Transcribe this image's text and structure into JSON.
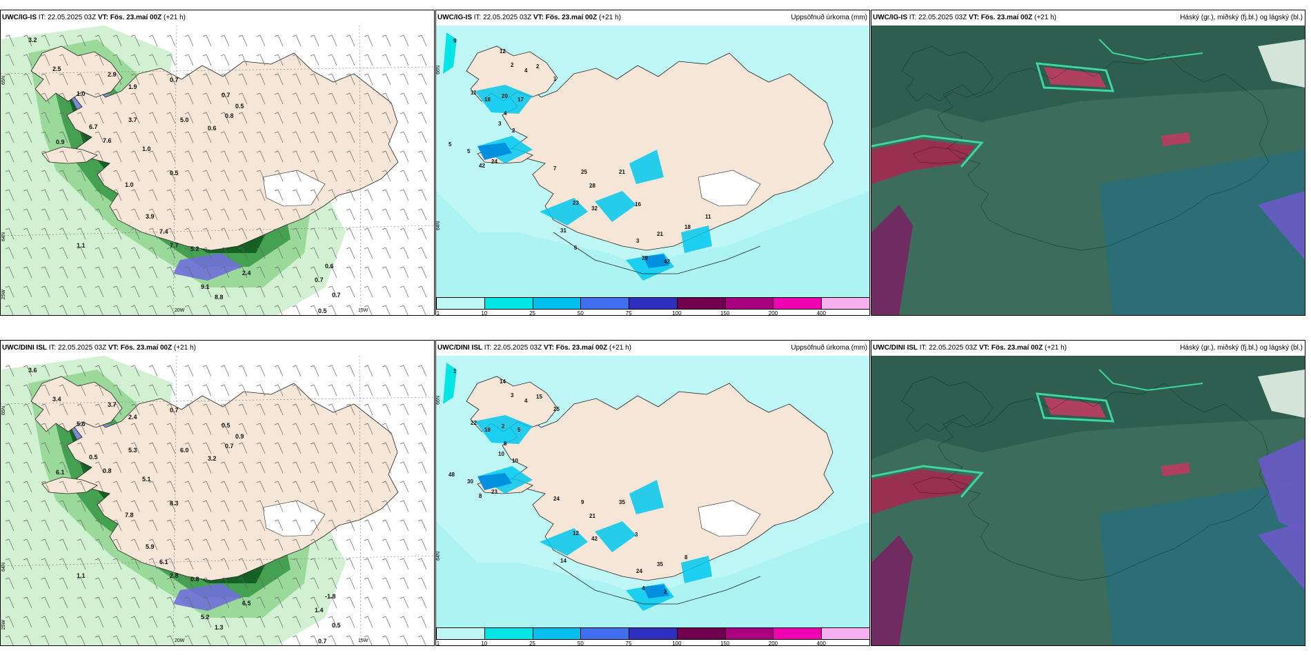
{
  "rows": [
    {
      "model": "UWC/IG-IS",
      "it_label": "IT:",
      "it_value": "22.05.2025 03Z",
      "vt_label": "VT:",
      "vt_value": "Fös. 23.maí 00Z",
      "lead": "(+21 h)"
    },
    {
      "model": "UWC/DINI ISL",
      "it_label": "IT:",
      "it_value": "22.05.2025 03Z",
      "vt_label": "VT:",
      "vt_value": "Fös. 23.maí 00Z",
      "lead": "(+21 h)"
    }
  ],
  "titles": {
    "precip": "Uppsöfnuð úrkoma (mm)",
    "clouds": "Háský (gr.), miðský (fj.bl.) og lágský (bl.)"
  },
  "axis_labels": {
    "lat65": "65N",
    "lat64": "64N",
    "lat66": "66N",
    "lon25": "25W",
    "lon20": "20W",
    "lon15": "15W"
  },
  "colorbar": {
    "ticks": [
      "1",
      "10",
      "25",
      "50",
      "75",
      "100",
      "150",
      "200",
      "400"
    ],
    "colors": [
      "#bff7f7",
      "#00e5e5",
      "#00bfef",
      "#3f6fef",
      "#2f2fbf",
      "#6f0050",
      "#a8007f",
      "#ef00b0",
      "#f7b0f0"
    ]
  },
  "colors": {
    "land": "#f5e6d8",
    "sea_precip": "#aef3f3",
    "wind_green_light": "#b9e8b9",
    "wind_green_dark": "#0f5a1f",
    "cloud_base": "#2e5e50"
  },
  "wind_panels": [
    {
      "labels": [
        {
          "t": "3.2"
        },
        {
          "t": "2.5"
        },
        {
          "t": "2.9"
        },
        {
          "t": "1.9"
        },
        {
          "t": "0.7"
        },
        {
          "t": "1.0"
        },
        {
          "t": "6.7"
        },
        {
          "t": "7.6"
        },
        {
          "t": "3.7"
        },
        {
          "t": "0.9"
        },
        {
          "t": "5.0"
        },
        {
          "t": "0.6"
        },
        {
          "t": "0.8"
        },
        {
          "t": "0.5"
        },
        {
          "t": "0.7"
        },
        {
          "t": "1.0"
        },
        {
          "t": "0.5"
        },
        {
          "t": "1.0"
        },
        {
          "t": "3.9"
        },
        {
          "t": "7.4"
        },
        {
          "t": "7.7"
        },
        {
          "t": "5.2"
        },
        {
          "t": "2.4"
        },
        {
          "t": "9.1"
        },
        {
          "t": "8.8"
        },
        {
          "t": "0.5"
        },
        {
          "t": "0.7"
        },
        {
          "t": "0.7"
        },
        {
          "t": "0.6"
        },
        {
          "t": "1.1"
        }
      ]
    },
    {
      "labels": [
        {
          "t": "3.6"
        },
        {
          "t": "3.4"
        },
        {
          "t": "3.7"
        },
        {
          "t": "2.4"
        },
        {
          "t": "0.7"
        },
        {
          "t": "5.6"
        },
        {
          "t": "0.5"
        },
        {
          "t": "0.8"
        },
        {
          "t": "5.3"
        },
        {
          "t": "6.1"
        },
        {
          "t": "6.0"
        },
        {
          "t": "3.2"
        },
        {
          "t": "0.7"
        },
        {
          "t": "0.9"
        },
        {
          "t": "0.5"
        },
        {
          "t": "5.1"
        },
        {
          "t": "8.3"
        },
        {
          "t": "7.8"
        },
        {
          "t": "5.9"
        },
        {
          "t": "6.1"
        },
        {
          "t": "2.8"
        },
        {
          "t": "0.8"
        },
        {
          "t": "6.5"
        },
        {
          "t": "5.2"
        },
        {
          "t": "1.3"
        },
        {
          "t": "0.7"
        },
        {
          "t": "0.5"
        },
        {
          "t": "1.4"
        },
        {
          "t": "-1.8"
        },
        {
          "t": "1.1"
        }
      ]
    }
  ],
  "precip_panels": [
    {
      "labels": [
        {
          "t": "9"
        },
        {
          "t": "12"
        },
        {
          "t": "2"
        },
        {
          "t": "4"
        },
        {
          "t": "2"
        },
        {
          "t": "1"
        },
        {
          "t": "11"
        },
        {
          "t": "18"
        },
        {
          "t": "20"
        },
        {
          "t": "17"
        },
        {
          "t": "4"
        },
        {
          "t": "3"
        },
        {
          "t": "2"
        },
        {
          "t": "5"
        },
        {
          "t": "5"
        },
        {
          "t": "42"
        },
        {
          "t": "24"
        },
        {
          "t": "7"
        },
        {
          "t": "25"
        },
        {
          "t": "28"
        },
        {
          "t": "21"
        },
        {
          "t": "23"
        },
        {
          "t": "32"
        },
        {
          "t": "16"
        },
        {
          "t": "31"
        },
        {
          "t": "3"
        },
        {
          "t": "21"
        },
        {
          "t": "18"
        },
        {
          "t": "29"
        },
        {
          "t": "42"
        },
        {
          "t": "6"
        },
        {
          "t": "11"
        }
      ]
    },
    {
      "labels": [
        {
          "t": "1"
        },
        {
          "t": "14"
        },
        {
          "t": "3"
        },
        {
          "t": "4"
        },
        {
          "t": "15"
        },
        {
          "t": "25"
        },
        {
          "t": "22"
        },
        {
          "t": "18"
        },
        {
          "t": "2"
        },
        {
          "t": "5"
        },
        {
          "t": "8"
        },
        {
          "t": "10"
        },
        {
          "t": "10"
        },
        {
          "t": "48"
        },
        {
          "t": "30"
        },
        {
          "t": "8"
        },
        {
          "t": "23"
        },
        {
          "t": "24"
        },
        {
          "t": "9"
        },
        {
          "t": "21"
        },
        {
          "t": "35"
        },
        {
          "t": "12"
        },
        {
          "t": "42"
        },
        {
          "t": "3"
        },
        {
          "t": "14"
        },
        {
          "t": "24"
        },
        {
          "t": "35"
        },
        {
          "t": "8"
        },
        {
          "t": "4"
        },
        {
          "t": "2"
        }
      ]
    }
  ]
}
